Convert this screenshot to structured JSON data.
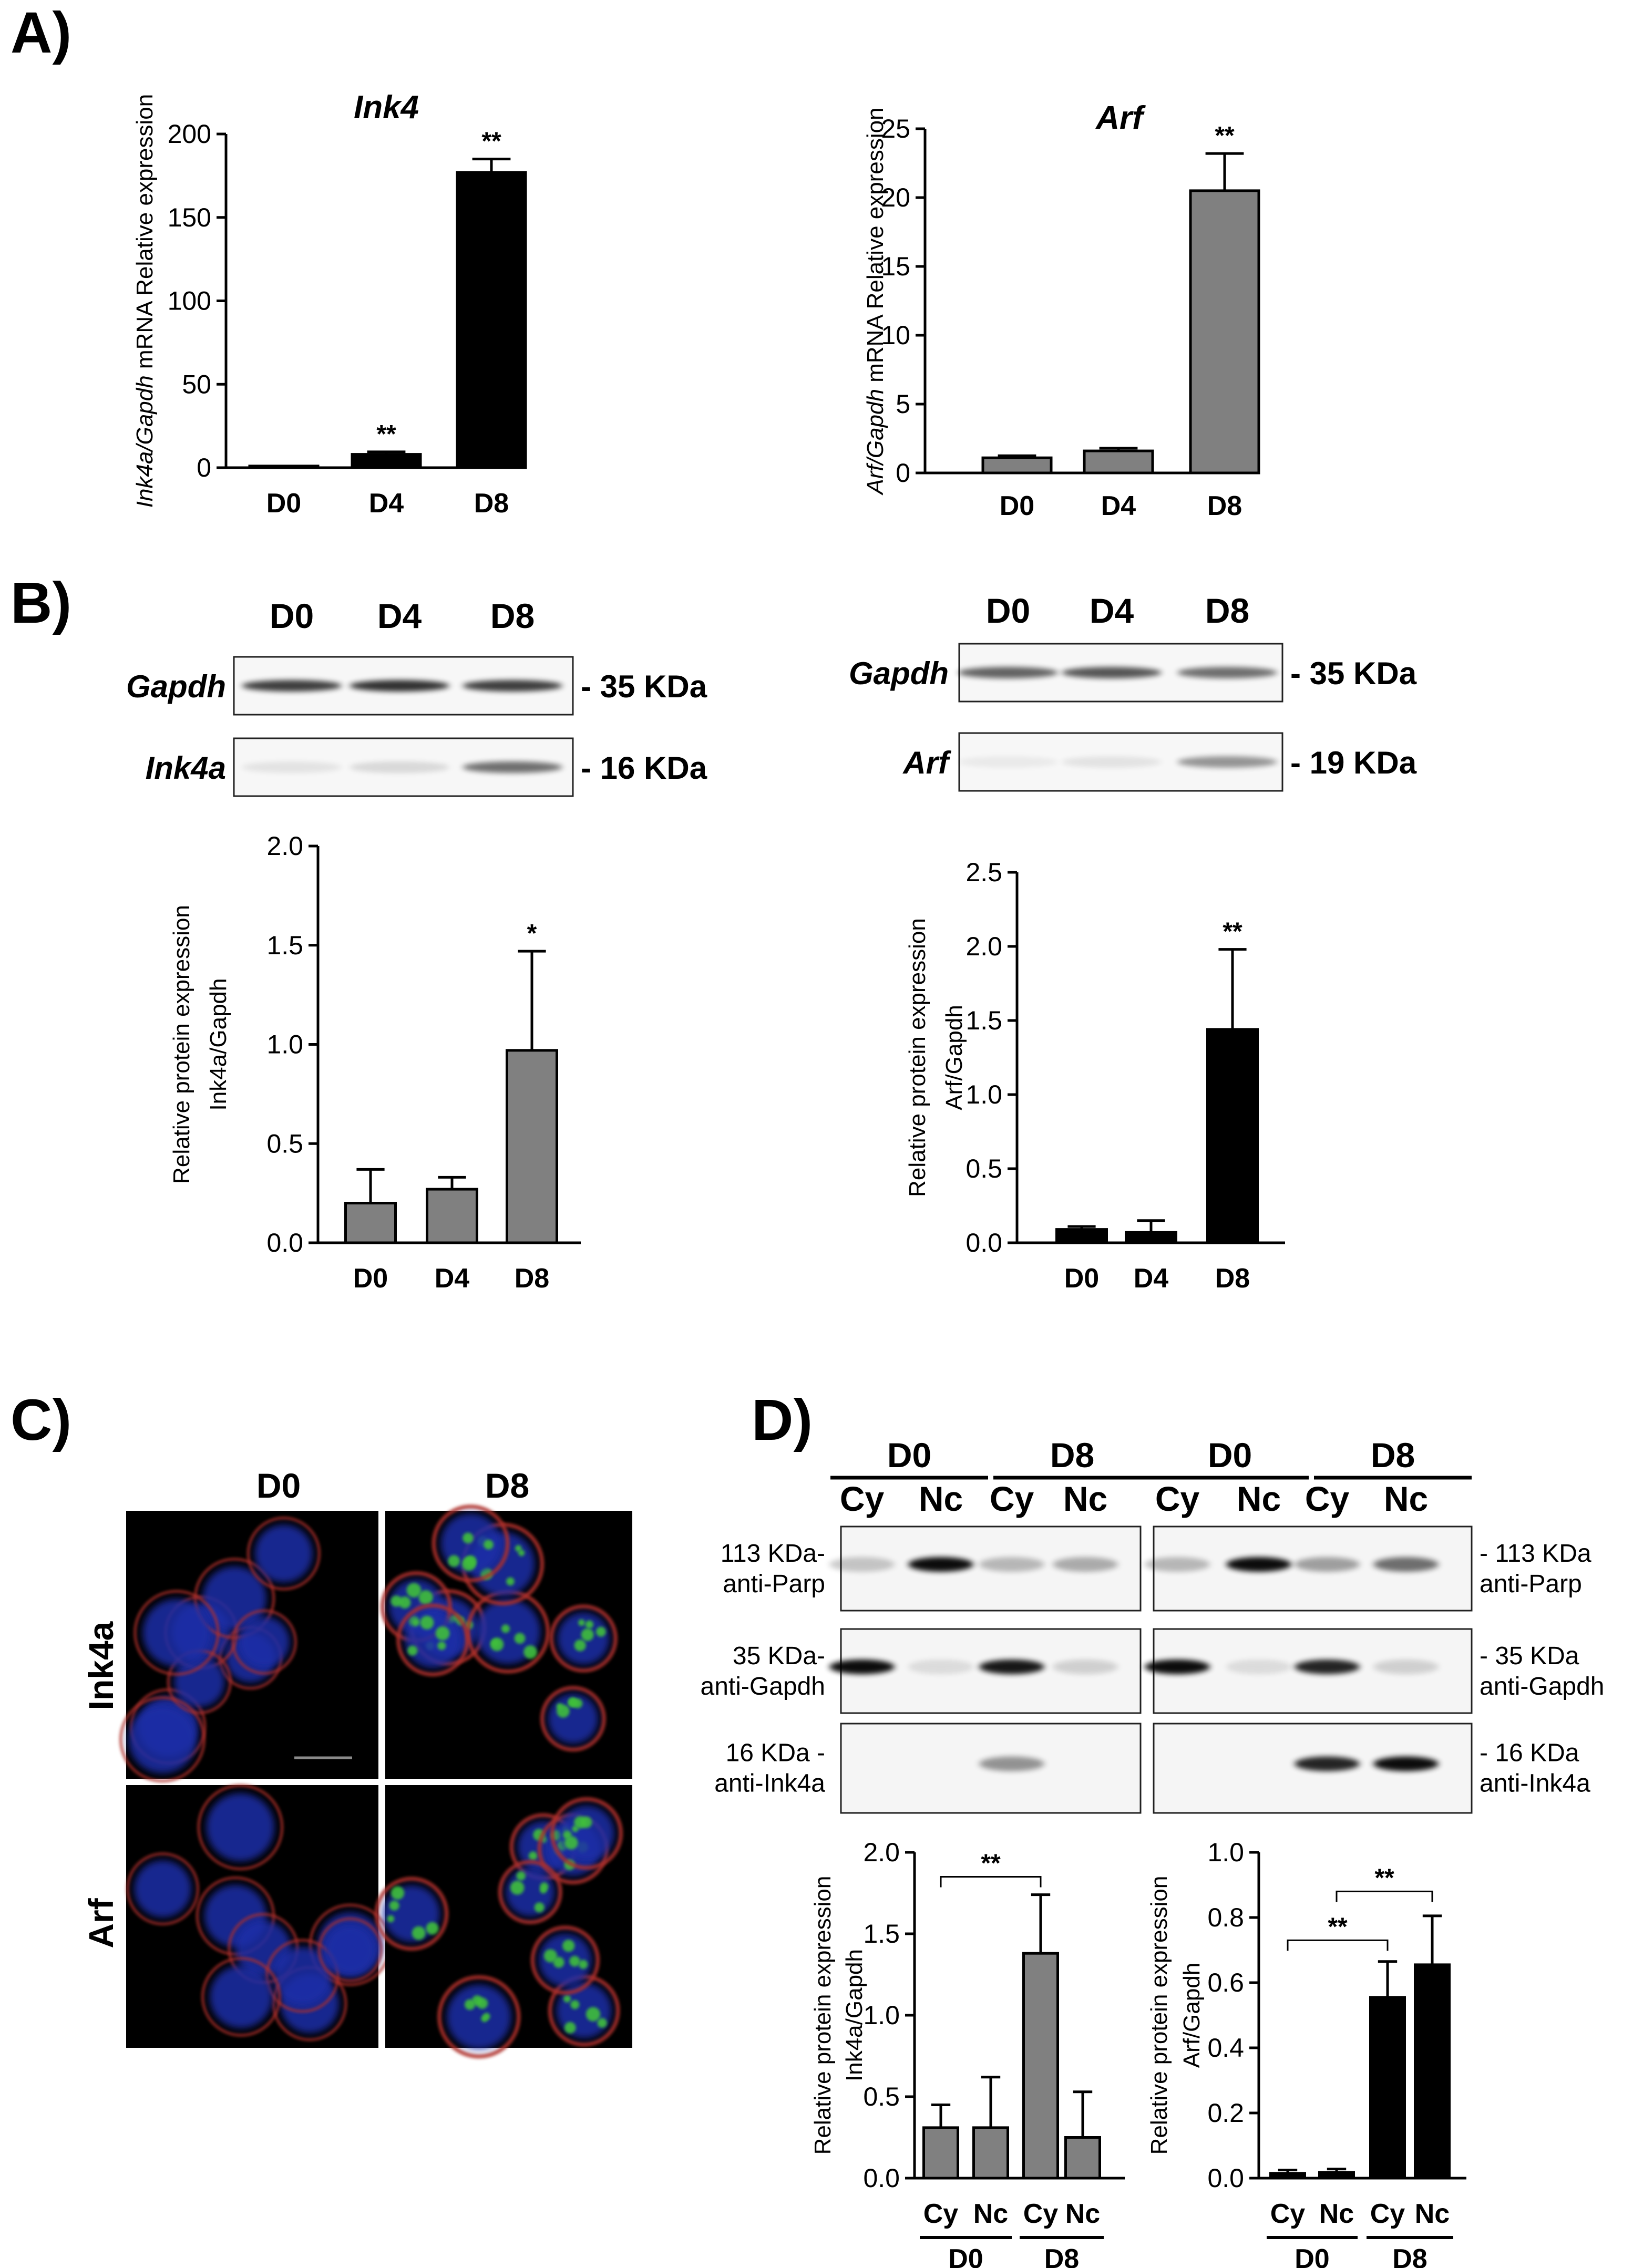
{
  "panels": {
    "A": "A)",
    "B": "B)",
    "C": "C)",
    "D": "D)"
  },
  "chart_data": [
    {
      "id": "A_ink4",
      "type": "bar",
      "title": "Ink4",
      "ylabel": "Ink4a/Gapdh mRNA Relative expression",
      "categories": [
        "D0",
        "D4",
        "D8"
      ],
      "values": [
        1,
        8,
        177
      ],
      "errors": [
        0,
        1.5,
        8
      ],
      "colors": [
        "#000000",
        "#000000",
        "#000000"
      ],
      "significance": [
        "",
        "**",
        "**"
      ],
      "ylim": [
        0,
        200
      ],
      "yticks": [
        "0",
        "50",
        "100",
        "150",
        "200"
      ]
    },
    {
      "id": "A_arf",
      "type": "bar",
      "title": "Arf",
      "ylabel": "Arf/Gapdh mRNA Relative expression",
      "categories": [
        "D0",
        "D4",
        "D8"
      ],
      "values": [
        1.1,
        1.6,
        20.5
      ],
      "errors": [
        0.15,
        0.2,
        2.7
      ],
      "colors": [
        "#808080",
        "#808080",
        "#808080"
      ],
      "significance": [
        "",
        "",
        "**"
      ],
      "ylim": [
        0,
        25
      ],
      "yticks": [
        "0",
        "5",
        "10",
        "15",
        "20",
        "25"
      ]
    },
    {
      "id": "B_ink4a",
      "type": "bar",
      "title": "",
      "ylabel": [
        "Relative protein expression",
        "Ink4a/Gapdh"
      ],
      "categories": [
        "D0",
        "D4",
        "D8"
      ],
      "values": [
        0.2,
        0.27,
        0.97
      ],
      "errors": [
        0.17,
        0.06,
        0.5
      ],
      "colors": [
        "#808080",
        "#808080",
        "#808080"
      ],
      "significance": [
        "",
        "",
        "*"
      ],
      "ylim": [
        0,
        2.0
      ],
      "yticks": [
        "0.0",
        "0.5",
        "1.0",
        "1.5",
        "2.0"
      ]
    },
    {
      "id": "B_arf",
      "type": "bar",
      "title": "",
      "ylabel": [
        "Relative protein expression",
        "Arf/Gapdh"
      ],
      "categories": [
        "D0",
        "D4",
        "D8"
      ],
      "values": [
        0.09,
        0.07,
        1.44
      ],
      "errors": [
        0.02,
        0.08,
        0.54
      ],
      "colors": [
        "#000000",
        "#000000",
        "#000000"
      ],
      "significance": [
        "",
        "",
        "**"
      ],
      "ylim": [
        0,
        2.5
      ],
      "yticks": [
        "0.0",
        "0.5",
        "1.0",
        "1.5",
        "2.0",
        "2.5"
      ]
    },
    {
      "id": "D_ink4a",
      "type": "bar",
      "title": "",
      "ylabel": [
        "Relative protein expression",
        "Ink4a/Gapdh"
      ],
      "categories": [
        "Cy",
        "Nc",
        "Cy",
        "Nc"
      ],
      "groups": [
        "D0",
        "D8"
      ],
      "values": [
        0.31,
        0.31,
        1.38,
        0.25
      ],
      "errors": [
        0.14,
        0.31,
        0.36,
        0.28
      ],
      "colors": [
        "#808080",
        "#808080",
        "#808080",
        "#808080"
      ],
      "brackets": [
        {
          "from": 0,
          "to": 2,
          "label": "**"
        }
      ],
      "ylim": [
        0,
        2.0
      ],
      "yticks": [
        "0.0",
        "0.5",
        "1.0",
        "1.5",
        "2.0"
      ]
    },
    {
      "id": "D_arf",
      "type": "bar",
      "title": "",
      "ylabel": [
        "Relative protein expression",
        "Arf/Gapdh"
      ],
      "categories": [
        "Cy",
        "Nc",
        "Cy",
        "Nc"
      ],
      "groups": [
        "D0",
        "D8"
      ],
      "values": [
        0.015,
        0.018,
        0.555,
        0.655
      ],
      "errors": [
        0.01,
        0.01,
        0.11,
        0.15
      ],
      "colors": [
        "#000000",
        "#000000",
        "#000000",
        "#000000"
      ],
      "brackets": [
        {
          "from": 0,
          "to": 2,
          "label": "**"
        },
        {
          "from": 1,
          "to": 3,
          "label": "**"
        }
      ],
      "ylim": [
        0,
        1.0
      ],
      "yticks": [
        "0.0",
        "0.2",
        "0.4",
        "0.6",
        "0.8",
        "1.0"
      ]
    }
  ],
  "blots_B": {
    "left": {
      "lanes": [
        "D0",
        "D4",
        "D8"
      ],
      "rows": [
        {
          "name": "Gapdh",
          "kda": "- 35 KDa"
        },
        {
          "name": "Ink4a",
          "kda": "- 16 KDa"
        }
      ]
    },
    "right": {
      "lanes": [
        "D0",
        "D4",
        "D8"
      ],
      "rows": [
        {
          "name": "Gapdh",
          "kda": "- 35 KDa"
        },
        {
          "name": "Arf",
          "kda": "- 19 KDa"
        }
      ]
    }
  },
  "micro_C": {
    "cols": [
      "D0",
      "D8"
    ],
    "rows": [
      "Ink4a",
      "Arf"
    ]
  },
  "blots_D": {
    "groups": [
      "D0",
      "D8",
      "D0",
      "D8"
    ],
    "lanes": [
      "Cy",
      "Nc",
      "Cy",
      "Nc",
      "Cy",
      "Nc",
      "Cy",
      "Nc"
    ],
    "left_labels": [
      [
        "113 KDa-",
        "anti-Parp"
      ],
      [
        "35 KDa-",
        "anti-Gapdh"
      ],
      [
        "16 KDa -",
        "anti-Ink4a"
      ]
    ],
    "right_labels": [
      [
        "- 113 KDa",
        "anti-Parp"
      ],
      [
        "- 35 KDa",
        "anti-Gapdh"
      ],
      [
        "- 16 KDa",
        "anti-Ink4a"
      ]
    ]
  }
}
